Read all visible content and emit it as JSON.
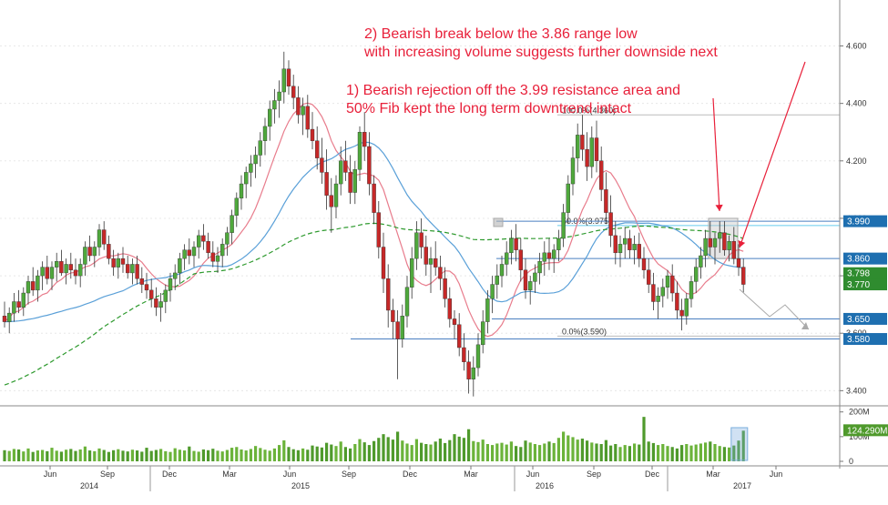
{
  "chart_data": {
    "type": "candlestick",
    "price_axis": {
      "ylim": [
        3.36,
        4.76
      ],
      "ticks": [
        3.4,
        3.6,
        3.8,
        4.0,
        4.2,
        4.4,
        4.6
      ],
      "tick_labels": [
        "3.400",
        "3.600",
        "3.800",
        "4.000",
        "4.200",
        "4.400",
        "4.600"
      ]
    },
    "volume_axis": {
      "ylim": [
        0,
        210
      ],
      "ticks": [
        0,
        100,
        200
      ],
      "tick_labels": [
        "0",
        "100M",
        "200M"
      ]
    },
    "time_axis": {
      "month_labels": [
        "Jun",
        "Sep",
        "Dec",
        "Mar",
        "Jun",
        "Sep",
        "Dec",
        "Mar",
        "Jun",
        "Sep",
        "Dec",
        "Mar",
        "Jun"
      ],
      "year_labels": [
        "2014",
        "2015",
        "2016",
        "2017"
      ]
    },
    "annotations": [
      {
        "text": "2) Bearish break below the 3.86 range low"
      },
      {
        "text": "with increasing volume suggests further downside next"
      },
      {
        "text": "1) Bearish rejection off the 3.99 resistance area and"
      },
      {
        "text": "50% Fib kept the long term downtrend intact"
      }
    ],
    "fib_labels": [
      "100.0%(4.360)",
      "50.0%(3.975)",
      "0.0%(3.590)"
    ],
    "levels": [
      {
        "value": 3.99,
        "label": "3.990",
        "bg": "#1e6fb0"
      },
      {
        "value": 3.86,
        "label": "3.860",
        "bg": "#1e6fb0"
      },
      {
        "value": 3.798,
        "label": "3.798",
        "bg": "#2f8c2f"
      },
      {
        "value": 3.77,
        "label": "3.770",
        "bg": "#2f8c2f"
      },
      {
        "value": 3.65,
        "label": "3.650",
        "bg": "#1e6fb0"
      },
      {
        "value": 3.58,
        "label": "3.580",
        "bg": "#1e6fb0"
      }
    ],
    "last_volume_label": "124.290M",
    "colors": {
      "up": "#4fa83c",
      "down": "#c62828",
      "ma_short": "#e87c8c",
      "ma_mid": "#5aa0d8",
      "ma_long": "#2e9a2e",
      "level_line": "#4a7fc1",
      "annotation": "#e8203a"
    },
    "candles": [
      [
        3.66,
        3.71,
        3.62,
        3.64
      ],
      [
        3.64,
        3.69,
        3.6,
        3.67
      ],
      [
        3.67,
        3.74,
        3.64,
        3.71
      ],
      [
        3.71,
        3.75,
        3.67,
        3.69
      ],
      [
        3.69,
        3.76,
        3.66,
        3.74
      ],
      [
        3.74,
        3.8,
        3.7,
        3.78
      ],
      [
        3.78,
        3.83,
        3.73,
        3.75
      ],
      [
        3.75,
        3.82,
        3.71,
        3.8
      ],
      [
        3.8,
        3.85,
        3.75,
        3.83
      ],
      [
        3.83,
        3.87,
        3.77,
        3.79
      ],
      [
        3.79,
        3.85,
        3.75,
        3.83
      ],
      [
        3.83,
        3.88,
        3.78,
        3.85
      ],
      [
        3.85,
        3.89,
        3.8,
        3.81
      ],
      [
        3.81,
        3.86,
        3.77,
        3.84
      ],
      [
        3.84,
        3.88,
        3.79,
        3.82
      ],
      [
        3.82,
        3.86,
        3.77,
        3.8
      ],
      [
        3.8,
        3.86,
        3.76,
        3.84
      ],
      [
        3.84,
        3.92,
        3.8,
        3.9
      ],
      [
        3.9,
        3.94,
        3.85,
        3.87
      ],
      [
        3.87,
        3.92,
        3.83,
        3.9
      ],
      [
        3.9,
        3.98,
        3.87,
        3.96
      ],
      [
        3.96,
        3.99,
        3.89,
        3.91
      ],
      [
        3.91,
        3.94,
        3.84,
        3.86
      ],
      [
        3.86,
        3.89,
        3.8,
        3.83
      ],
      [
        3.83,
        3.88,
        3.79,
        3.86
      ],
      [
        3.86,
        3.9,
        3.81,
        3.84
      ],
      [
        3.84,
        3.87,
        3.79,
        3.81
      ],
      [
        3.81,
        3.86,
        3.77,
        3.84
      ],
      [
        3.84,
        3.87,
        3.77,
        3.79
      ],
      [
        3.79,
        3.83,
        3.74,
        3.77
      ],
      [
        3.77,
        3.81,
        3.72,
        3.75
      ],
      [
        3.75,
        3.79,
        3.69,
        3.72
      ],
      [
        3.72,
        3.76,
        3.66,
        3.69
      ],
      [
        3.69,
        3.74,
        3.64,
        3.71
      ],
      [
        3.71,
        3.77,
        3.67,
        3.75
      ],
      [
        3.75,
        3.81,
        3.71,
        3.79
      ],
      [
        3.79,
        3.84,
        3.75,
        3.81
      ],
      [
        3.81,
        3.88,
        3.77,
        3.86
      ],
      [
        3.86,
        3.91,
        3.82,
        3.89
      ],
      [
        3.89,
        3.93,
        3.84,
        3.87
      ],
      [
        3.87,
        3.92,
        3.83,
        3.9
      ],
      [
        3.9,
        3.96,
        3.86,
        3.94
      ],
      [
        3.94,
        3.98,
        3.89,
        3.92
      ],
      [
        3.92,
        3.95,
        3.86,
        3.88
      ],
      [
        3.88,
        3.92,
        3.83,
        3.85
      ],
      [
        3.85,
        3.9,
        3.81,
        3.87
      ],
      [
        3.87,
        3.93,
        3.83,
        3.91
      ],
      [
        3.91,
        3.97,
        3.87,
        3.95
      ],
      [
        3.95,
        4.03,
        3.91,
        4.01
      ],
      [
        4.01,
        4.09,
        3.97,
        4.07
      ],
      [
        4.07,
        4.15,
        4.03,
        4.12
      ],
      [
        4.12,
        4.18,
        4.07,
        4.16
      ],
      [
        4.16,
        4.22,
        4.11,
        4.19
      ],
      [
        4.19,
        4.25,
        4.14,
        4.22
      ],
      [
        4.22,
        4.3,
        4.18,
        4.27
      ],
      [
        4.27,
        4.35,
        4.22,
        4.32
      ],
      [
        4.32,
        4.41,
        4.27,
        4.38
      ],
      [
        4.38,
        4.45,
        4.33,
        4.41
      ],
      [
        4.41,
        4.48,
        4.35,
        4.44
      ],
      [
        4.44,
        4.58,
        4.4,
        4.52
      ],
      [
        4.52,
        4.55,
        4.43,
        4.46
      ],
      [
        4.46,
        4.5,
        4.38,
        4.42
      ],
      [
        4.42,
        4.46,
        4.33,
        4.36
      ],
      [
        4.36,
        4.42,
        4.29,
        4.39
      ],
      [
        4.39,
        4.43,
        4.28,
        4.31
      ],
      [
        4.31,
        4.37,
        4.24,
        4.27
      ],
      [
        4.27,
        4.32,
        4.17,
        4.21
      ],
      [
        4.21,
        4.28,
        4.12,
        4.16
      ],
      [
        4.16,
        4.24,
        4.03,
        4.08
      ],
      [
        4.08,
        4.14,
        3.95,
        4.04
      ],
      [
        4.04,
        4.15,
        4.0,
        4.12
      ],
      [
        4.12,
        4.25,
        4.08,
        4.2
      ],
      [
        4.2,
        4.27,
        4.13,
        4.16
      ],
      [
        4.16,
        4.22,
        4.05,
        4.09
      ],
      [
        4.09,
        4.2,
        4.05,
        4.17
      ],
      [
        4.17,
        4.32,
        4.13,
        4.3
      ],
      [
        4.3,
        4.37,
        4.2,
        4.25
      ],
      [
        4.25,
        4.3,
        4.08,
        4.12
      ],
      [
        4.12,
        4.15,
        3.98,
        4.02
      ],
      [
        4.02,
        4.06,
        3.86,
        3.9
      ],
      [
        3.9,
        3.95,
        3.74,
        3.79
      ],
      [
        3.79,
        3.84,
        3.62,
        3.68
      ],
      [
        3.68,
        3.72,
        3.58,
        3.64
      ],
      [
        3.64,
        3.68,
        3.44,
        3.58
      ],
      [
        3.58,
        3.7,
        3.55,
        3.66
      ],
      [
        3.66,
        3.8,
        3.62,
        3.76
      ],
      [
        3.76,
        3.9,
        3.72,
        3.86
      ],
      [
        3.86,
        3.99,
        3.82,
        3.95
      ],
      [
        3.95,
        4.0,
        3.86,
        3.9
      ],
      [
        3.9,
        3.94,
        3.8,
        3.84
      ],
      [
        3.84,
        3.9,
        3.74,
        3.86
      ],
      [
        3.86,
        3.92,
        3.8,
        3.83
      ],
      [
        3.83,
        3.87,
        3.75,
        3.79
      ],
      [
        3.79,
        3.83,
        3.69,
        3.72
      ],
      [
        3.72,
        3.76,
        3.62,
        3.65
      ],
      [
        3.65,
        3.68,
        3.58,
        3.63
      ],
      [
        3.63,
        3.67,
        3.52,
        3.55
      ],
      [
        3.55,
        3.6,
        3.47,
        3.5
      ],
      [
        3.5,
        3.54,
        3.39,
        3.44
      ],
      [
        3.44,
        3.52,
        3.38,
        3.48
      ],
      [
        3.48,
        3.6,
        3.45,
        3.56
      ],
      [
        3.56,
        3.68,
        3.53,
        3.64
      ],
      [
        3.64,
        3.75,
        3.6,
        3.72
      ],
      [
        3.72,
        3.8,
        3.67,
        3.77
      ],
      [
        3.77,
        3.84,
        3.72,
        3.8
      ],
      [
        3.8,
        3.87,
        3.76,
        3.84
      ],
      [
        3.84,
        3.92,
        3.8,
        3.88
      ],
      [
        3.88,
        3.96,
        3.84,
        3.93
      ],
      [
        3.93,
        3.98,
        3.85,
        3.89
      ],
      [
        3.89,
        3.93,
        3.78,
        3.82
      ],
      [
        3.82,
        3.86,
        3.72,
        3.75
      ],
      [
        3.75,
        3.8,
        3.7,
        3.78
      ],
      [
        3.78,
        3.84,
        3.74,
        3.81
      ],
      [
        3.81,
        3.88,
        3.77,
        3.85
      ],
      [
        3.85,
        3.92,
        3.8,
        3.88
      ],
      [
        3.88,
        3.93,
        3.82,
        3.86
      ],
      [
        3.86,
        3.91,
        3.81,
        3.89
      ],
      [
        3.89,
        3.96,
        3.85,
        3.93
      ],
      [
        3.93,
        4.05,
        3.9,
        4.02
      ],
      [
        4.02,
        4.15,
        3.98,
        4.12
      ],
      [
        4.12,
        4.25,
        4.08,
        4.21
      ],
      [
        4.21,
        4.33,
        4.16,
        4.29
      ],
      [
        4.29,
        4.36,
        4.2,
        4.24
      ],
      [
        4.24,
        4.3,
        4.13,
        4.18
      ],
      [
        4.18,
        4.32,
        4.14,
        4.28
      ],
      [
        4.28,
        4.34,
        4.16,
        4.2
      ],
      [
        4.2,
        4.25,
        4.06,
        4.1
      ],
      [
        4.1,
        4.16,
        3.98,
        4.02
      ],
      [
        4.02,
        4.08,
        3.9,
        3.94
      ],
      [
        3.94,
        3.99,
        3.84,
        3.88
      ],
      [
        3.88,
        3.94,
        3.83,
        3.91
      ],
      [
        3.91,
        3.97,
        3.86,
        3.93
      ],
      [
        3.93,
        3.96,
        3.86,
        3.89
      ],
      [
        3.89,
        3.94,
        3.84,
        3.91
      ],
      [
        3.91,
        3.95,
        3.83,
        3.86
      ],
      [
        3.86,
        3.9,
        3.79,
        3.82
      ],
      [
        3.82,
        3.86,
        3.74,
        3.77
      ],
      [
        3.77,
        3.81,
        3.68,
        3.71
      ],
      [
        3.71,
        3.76,
        3.65,
        3.73
      ],
      [
        3.73,
        3.79,
        3.69,
        3.76
      ],
      [
        3.76,
        3.82,
        3.72,
        3.8
      ],
      [
        3.8,
        3.84,
        3.71,
        3.74
      ],
      [
        3.74,
        3.78,
        3.65,
        3.68
      ],
      [
        3.68,
        3.72,
        3.61,
        3.66
      ],
      [
        3.66,
        3.74,
        3.63,
        3.72
      ],
      [
        3.72,
        3.8,
        3.69,
        3.78
      ],
      [
        3.78,
        3.86,
        3.74,
        3.83
      ],
      [
        3.83,
        3.9,
        3.79,
        3.87
      ],
      [
        3.87,
        3.96,
        3.83,
        3.93
      ],
      [
        3.93,
        3.99,
        3.87,
        3.9
      ],
      [
        3.9,
        3.95,
        3.84,
        3.93
      ],
      [
        3.93,
        3.99,
        3.88,
        3.95
      ],
      [
        3.95,
        3.99,
        3.87,
        3.89
      ],
      [
        3.89,
        3.94,
        3.85,
        3.92
      ],
      [
        3.92,
        3.97,
        3.84,
        3.86
      ],
      [
        3.86,
        3.91,
        3.8,
        3.83
      ],
      [
        3.83,
        3.86,
        3.74,
        3.77
      ]
    ],
    "volumes": [
      45,
      42,
      50,
      48,
      40,
      52,
      38,
      44,
      46,
      41,
      55,
      43,
      39,
      47,
      50,
      42,
      48,
      60,
      44,
      41,
      52,
      46,
      38,
      45,
      49,
      43,
      40,
      47,
      44,
      39,
      55,
      42,
      46,
      50,
      41,
      38,
      53,
      47,
      44,
      60,
      42,
      39,
      48,
      45,
      51,
      43,
      40,
      46,
      55,
      58,
      48,
      44,
      50,
      62,
      54,
      47,
      43,
      52,
      66,
      85,
      58,
      49,
      45,
      52,
      47,
      64,
      60,
      56,
      75,
      68,
      62,
      80,
      58,
      52,
      70,
      90,
      77,
      66,
      82,
      95,
      110,
      98,
      88,
      120,
      84,
      72,
      66,
      90,
      75,
      70,
      68,
      80,
      92,
      74,
      86,
      110,
      100,
      95,
      130,
      82,
      78,
      88,
      70,
      66,
      72,
      75,
      68,
      80,
      62,
      58,
      84,
      76,
      70,
      66,
      72,
      80,
      74,
      95,
      120,
      105,
      98,
      88,
      92,
      84,
      76,
      72,
      70,
      86,
      64,
      70,
      58,
      66,
      62,
      72,
      68,
      180,
      80,
      74,
      66,
      70,
      62,
      58,
      52,
      66,
      70,
      64,
      68,
      72,
      76,
      80,
      70,
      62,
      58,
      56,
      64,
      84,
      124
    ]
  }
}
